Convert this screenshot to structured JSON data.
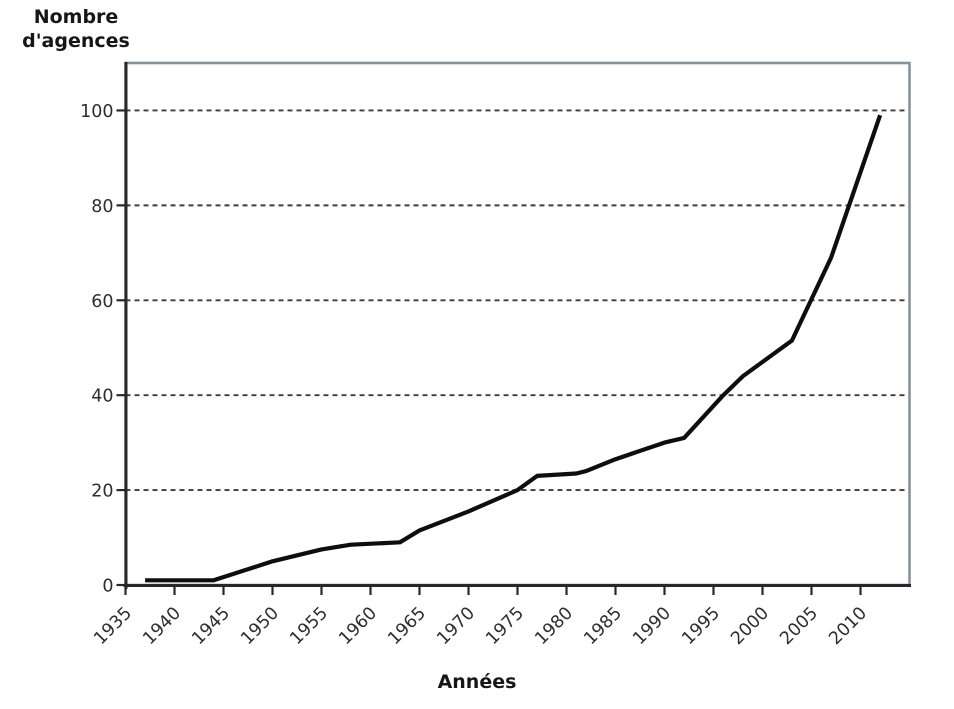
{
  "figure": {
    "y_axis_title_line1": "Nombre",
    "y_axis_title_line2": "d'agences",
    "x_axis_title": "Années"
  },
  "chart_data": {
    "type": "line",
    "title": "",
    "xlabel": "Années",
    "ylabel": "Nombre d'agences",
    "x_tick_labels": [
      "1935",
      "1940",
      "1945",
      "1950",
      "1955",
      "1960",
      "1965",
      "1970",
      "1975",
      "1980",
      "1985",
      "1990",
      "1995",
      "2000",
      "2005",
      "2010"
    ],
    "y_tick_labels": [
      "0",
      "20",
      "40",
      "60",
      "80",
      "100"
    ],
    "y_ticks": [
      0,
      20,
      40,
      60,
      80,
      100
    ],
    "xlim": [
      1935,
      2015
    ],
    "ylim": [
      0,
      110
    ],
    "grid": {
      "style": "dashed",
      "horizontal_at": [
        20,
        40,
        60,
        80,
        100
      ]
    },
    "legend": "none",
    "series": [
      {
        "name": "Nombre d'agences",
        "points": [
          [
            1937,
            1
          ],
          [
            1944,
            1
          ],
          [
            1950,
            5
          ],
          [
            1955,
            7.5
          ],
          [
            1958,
            8.5
          ],
          [
            1963,
            9
          ],
          [
            1965,
            11.5
          ],
          [
            1970,
            15.5
          ],
          [
            1975,
            20
          ],
          [
            1977,
            23
          ],
          [
            1981,
            23.5
          ],
          [
            1982,
            24
          ],
          [
            1985,
            26.5
          ],
          [
            1990,
            30
          ],
          [
            1992,
            31
          ],
          [
            1996,
            40
          ],
          [
            1998,
            44
          ],
          [
            2002,
            50
          ],
          [
            2003,
            51.5
          ],
          [
            2007,
            69
          ],
          [
            2012,
            99
          ]
        ]
      }
    ]
  },
  "colors": {
    "line": "#0e0e0e",
    "frame": "#87939a",
    "axis": "#26282b",
    "grid": "#3d3d3d",
    "tick_text": "#2e2e2e",
    "title_text": "#161616"
  }
}
